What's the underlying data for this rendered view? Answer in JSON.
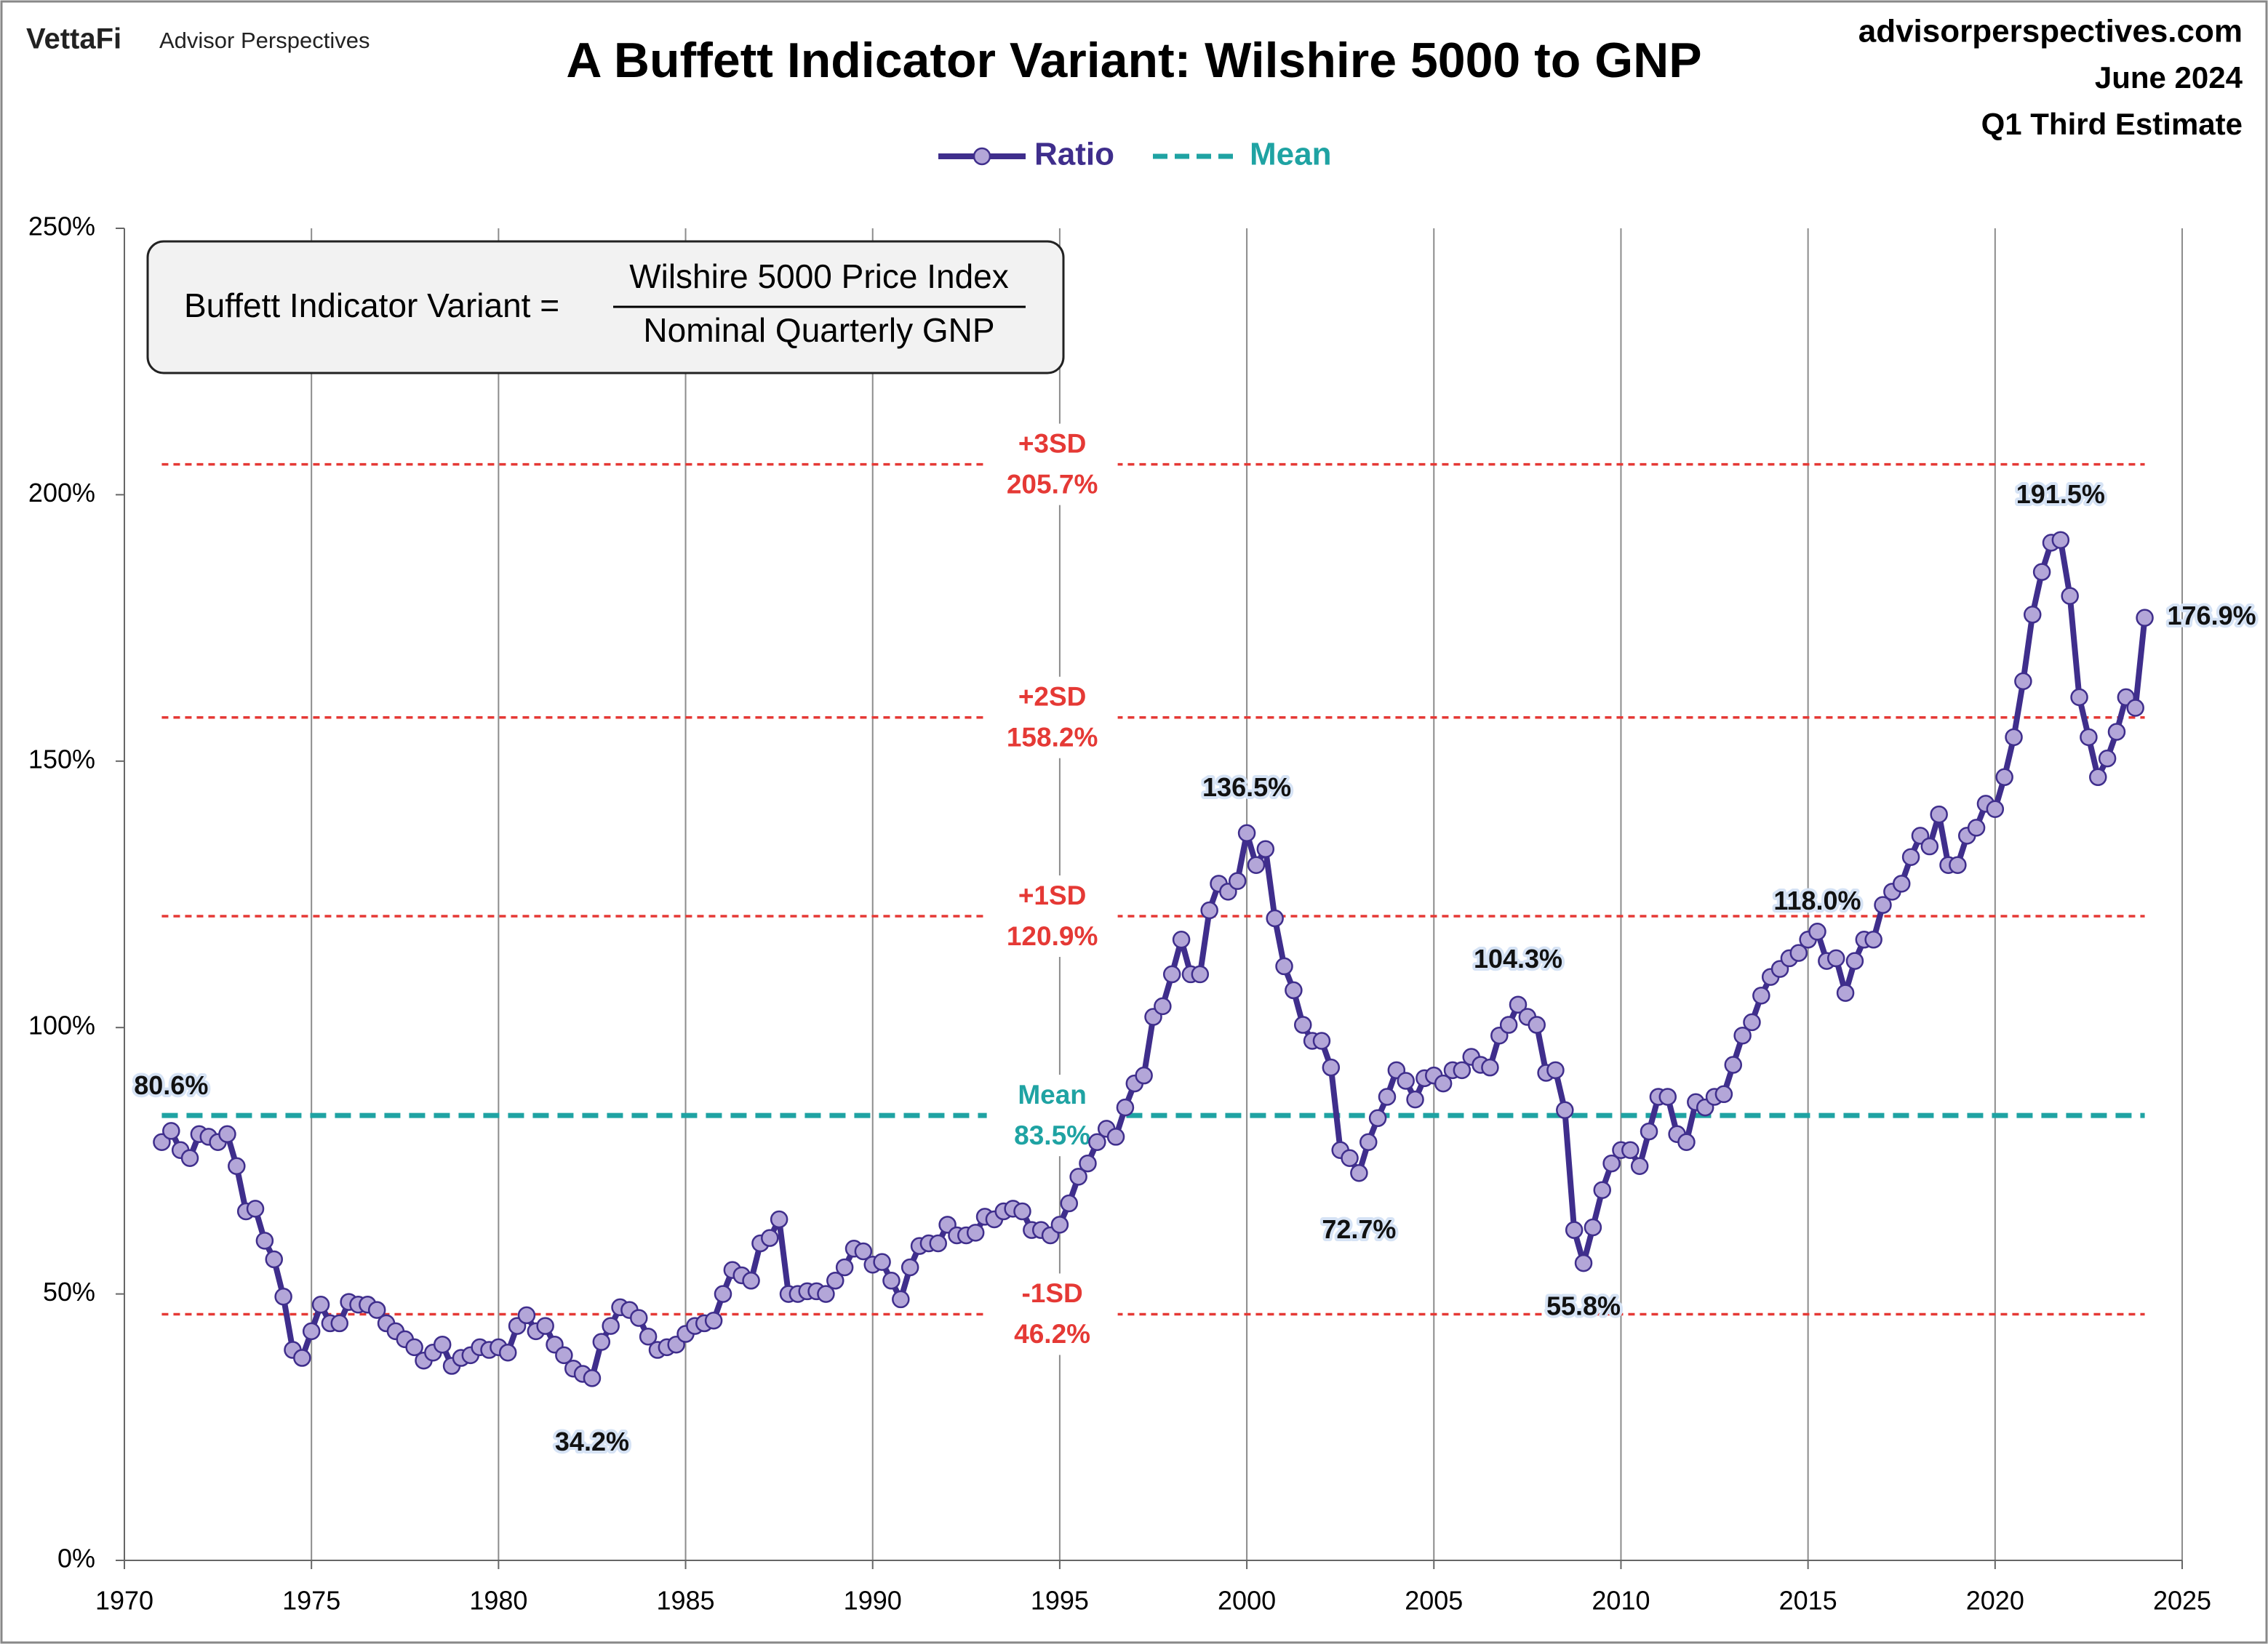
{
  "header": {
    "brand": "VettaFi",
    "publisher": "Advisor Perspectives",
    "site": "advisorperspectives.com",
    "date": "June 2024",
    "estimate": "Q1 Third Estimate"
  },
  "formula": {
    "left": "Buffett Indicator Variant =",
    "numerator": "Wilshire 5000 Price Index",
    "denominator": "Nominal Quarterly GNP"
  },
  "chart_data": {
    "type": "line",
    "title": "A Buffett Indicator Variant: Wilshire 5000 to GNP",
    "xlim": [
      1970,
      2025
    ],
    "xticks": [
      1970,
      1975,
      1980,
      1985,
      1990,
      1995,
      2000,
      2005,
      2010,
      2015,
      2020,
      2025
    ],
    "ylim": [
      0,
      250
    ],
    "yticks": [
      {
        "value": 0,
        "label": "0%"
      },
      {
        "value": 50,
        "label": "50%"
      },
      {
        "value": 100,
        "label": "100%"
      },
      {
        "value": 150,
        "label": "150%"
      },
      {
        "value": 200,
        "label": "200%"
      },
      {
        "value": 250,
        "label": "250%"
      }
    ],
    "grid": "x",
    "series": [
      {
        "name": "Ratio",
        "color": "#3f2e8c",
        "marker_color": "#b3a6d8",
        "x": [
          1971,
          1971.25,
          1971.5,
          1971.75,
          1972,
          1972.25,
          1972.5,
          1972.75,
          1973,
          1973.25,
          1973.5,
          1973.75,
          1974,
          1974.25,
          1974.5,
          1974.75,
          1975,
          1975.25,
          1975.5,
          1975.75,
          1976,
          1976.25,
          1976.5,
          1976.75,
          1977,
          1977.25,
          1977.5,
          1977.75,
          1978,
          1978.25,
          1978.5,
          1978.75,
          1979,
          1979.25,
          1979.5,
          1979.75,
          1980,
          1980.25,
          1980.5,
          1980.75,
          1981,
          1981.25,
          1981.5,
          1981.75,
          1982,
          1982.25,
          1982.5,
          1982.75,
          1983,
          1983.25,
          1983.5,
          1983.75,
          1984,
          1984.25,
          1984.5,
          1984.75,
          1985,
          1985.25,
          1985.5,
          1985.75,
          1986,
          1986.25,
          1986.5,
          1986.75,
          1987,
          1987.25,
          1987.5,
          1987.75,
          1988,
          1988.25,
          1988.5,
          1988.75,
          1989,
          1989.25,
          1989.5,
          1989.75,
          1990,
          1990.25,
          1990.5,
          1990.75,
          1991,
          1991.25,
          1991.5,
          1991.75,
          1992,
          1992.25,
          1992.5,
          1992.75,
          1993,
          1993.25,
          1993.5,
          1993.75,
          1994,
          1994.25,
          1994.5,
          1994.75,
          1995,
          1995.25,
          1995.5,
          1995.75,
          1996,
          1996.25,
          1996.5,
          1996.75,
          1997,
          1997.25,
          1997.5,
          1997.75,
          1998,
          1998.25,
          1998.5,
          1998.75,
          1999,
          1999.25,
          1999.5,
          1999.75,
          2000,
          2000.25,
          2000.5,
          2000.75,
          2001,
          2001.25,
          2001.5,
          2001.75,
          2002,
          2002.25,
          2002.5,
          2002.75,
          2003,
          2003.25,
          2003.5,
          2003.75,
          2004,
          2004.25,
          2004.5,
          2004.75,
          2005,
          2005.25,
          2005.5,
          2005.75,
          2006,
          2006.25,
          2006.5,
          2006.75,
          2007,
          2007.25,
          2007.5,
          2007.75,
          2008,
          2008.25,
          2008.5,
          2008.75,
          2009,
          2009.25,
          2009.5,
          2009.75,
          2010,
          2010.25,
          2010.5,
          2010.75,
          2011,
          2011.25,
          2011.5,
          2011.75,
          2012,
          2012.25,
          2012.5,
          2012.75,
          2013,
          2013.25,
          2013.5,
          2013.75,
          2014,
          2014.25,
          2014.5,
          2014.75,
          2015,
          2015.25,
          2015.5,
          2015.75,
          2016,
          2016.25,
          2016.5,
          2016.75,
          2017,
          2017.25,
          2017.5,
          2017.75,
          2018,
          2018.25,
          2018.5,
          2018.75,
          2019,
          2019.25,
          2019.5,
          2019.75,
          2020,
          2020.25,
          2020.5,
          2020.75,
          2021,
          2021.25,
          2021.5,
          2021.75,
          2022,
          2022.25,
          2022.5,
          2022.75,
          2023,
          2023.25,
          2023.5,
          2023.75,
          2024
        ],
        "values": [
          78.5,
          80.6,
          77,
          75.5,
          80,
          79.5,
          78.5,
          80,
          74,
          65.5,
          66,
          60,
          56.5,
          49.5,
          39.5,
          38,
          43,
          48,
          44.5,
          44.5,
          48.5,
          48,
          48,
          47,
          44.5,
          43,
          41.5,
          40,
          37.5,
          39,
          40.5,
          36.5,
          38,
          38.5,
          40,
          39.5,
          40,
          39,
          44,
          46,
          43,
          44,
          40.5,
          38.5,
          36,
          35,
          34.2,
          41,
          44,
          47.5,
          47,
          45.5,
          42,
          39.5,
          40,
          40.5,
          42.5,
          44,
          44.5,
          45,
          50,
          54.5,
          53.5,
          52.5,
          59.5,
          60.5,
          64,
          50,
          50,
          50.5,
          50.5,
          50,
          52.5,
          55,
          58.5,
          58,
          55.5,
          56,
          52.5,
          49,
          55,
          59,
          59.5,
          59.5,
          63,
          61,
          61,
          61.5,
          64.5,
          64,
          65.5,
          66,
          65.5,
          62,
          62,
          61,
          63,
          67,
          72,
          74.5,
          78.5,
          81,
          79.5,
          85,
          89.5,
          91,
          102,
          104,
          110,
          116.5,
          110,
          110,
          122,
          127,
          125.5,
          127.5,
          136.5,
          130.5,
          133.5,
          120.5,
          111.5,
          107,
          100.5,
          97.5,
          97.5,
          92.5,
          77,
          75.5,
          72.7,
          78.5,
          83,
          87,
          92,
          90,
          86.5,
          90.5,
          91,
          89.5,
          92,
          92,
          94.5,
          93,
          92.5,
          98.5,
          100.5,
          104.3,
          102,
          100.5,
          91.5,
          92,
          84.5,
          62,
          55.8,
          62.5,
          69.5,
          74.5,
          77,
          77,
          74,
          80.5,
          87,
          87,
          80,
          78.5,
          86,
          85,
          87,
          87.5,
          93,
          98.5,
          101,
          106,
          109.5,
          111,
          113,
          114,
          116.5,
          118,
          112.5,
          113,
          106.5,
          112.5,
          116.5,
          116.5,
          123,
          125.5,
          127,
          132,
          136,
          134,
          140,
          130.5,
          130.5,
          136,
          137.5,
          142,
          141,
          147,
          154.5,
          165,
          177.5,
          185.5,
          191,
          191.5,
          181,
          162,
          154.5,
          147,
          150.5,
          155.5,
          162,
          160,
          176.9
        ]
      }
    ],
    "reference_lines": [
      {
        "name": "+3SD",
        "value": 205.7,
        "label": "205.7%",
        "color": "#e53935"
      },
      {
        "name": "+2SD",
        "value": 158.2,
        "label": "158.2%",
        "color": "#e53935"
      },
      {
        "name": "+1SD",
        "value": 120.9,
        "label": "120.9%",
        "color": "#e53935"
      },
      {
        "name": "Mean",
        "value": 83.5,
        "label": "83.5%",
        "color": "#1fa3a3"
      },
      {
        "name": "-1SD",
        "value": 46.2,
        "label": "46.2%",
        "color": "#e53935"
      }
    ],
    "annotations": [
      {
        "x": 1971.25,
        "value": 80.6,
        "label": "80.6%"
      },
      {
        "x": 1982.5,
        "value": 34.2,
        "label": "34.2%"
      },
      {
        "x": 2000,
        "value": 136.5,
        "label": "136.5%"
      },
      {
        "x": 2003,
        "value": 72.7,
        "label": "72.7%"
      },
      {
        "x": 2007.25,
        "value": 104.3,
        "label": "104.3%"
      },
      {
        "x": 2009,
        "value": 55.8,
        "label": "55.8%"
      },
      {
        "x": 2015.25,
        "value": 118.0,
        "label": "118.0%"
      },
      {
        "x": 2021.75,
        "value": 191.5,
        "label": "191.5%"
      },
      {
        "x": 2024,
        "value": 176.9,
        "label": "176.9%"
      }
    ]
  }
}
